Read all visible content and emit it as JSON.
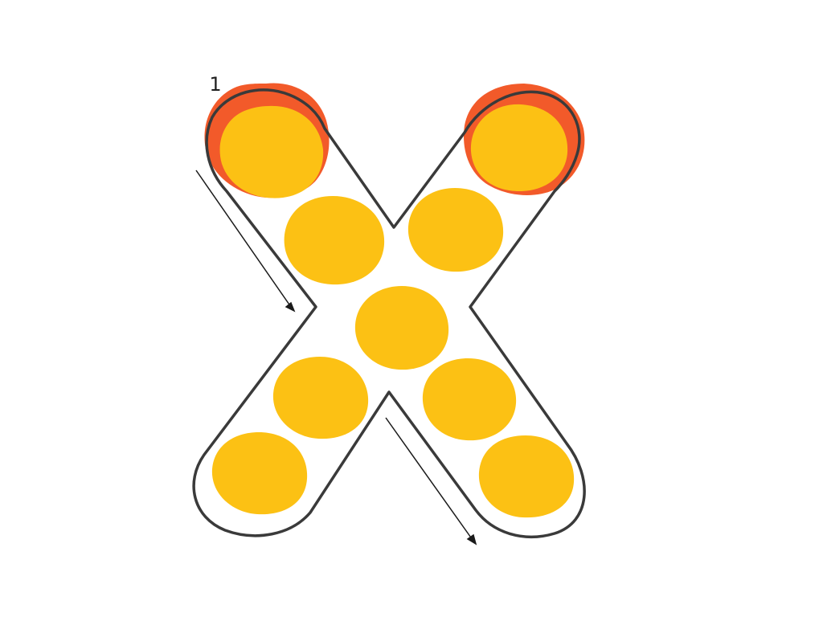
{
  "worksheet": {
    "letter": "X",
    "start_label": "1",
    "colors": {
      "outline": "#3a3a3a",
      "dot_fill": "#fcc114",
      "start_dot_ring": "#f25a2a",
      "arrow": "#1a1a1a",
      "background": "#ffffff"
    },
    "dot_count": 9,
    "start_dots": 2,
    "arrows": 2
  }
}
